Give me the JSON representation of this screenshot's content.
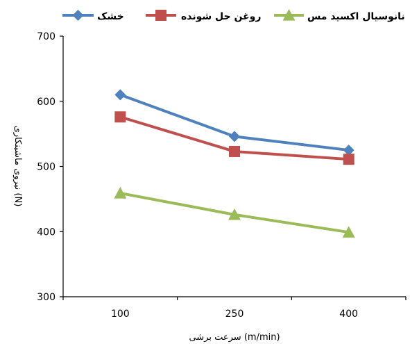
{
  "chart_data": {
    "type": "line",
    "categories": [
      "100",
      "250",
      "400"
    ],
    "ylim": [
      300,
      700
    ],
    "yticks": [
      300,
      400,
      500,
      600,
      700
    ],
    "xlabel": "سرعت برشی (m/min)",
    "ylabel": "نیروی ماشینکاری (N)",
    "legend_position": "top",
    "grid": false,
    "series": [
      {
        "name": "خشک",
        "values": [
          610,
          546,
          525
        ],
        "color": "#4F81BD",
        "marker": "diamond"
      },
      {
        "name": "روغن حل شونده",
        "values": [
          576,
          523,
          511
        ],
        "color": "#C0504D",
        "marker": "square"
      },
      {
        "name": "نانوسیال اکسید مس",
        "values": [
          459,
          426,
          399
        ],
        "color": "#9BBB59",
        "marker": "triangle"
      }
    ]
  }
}
